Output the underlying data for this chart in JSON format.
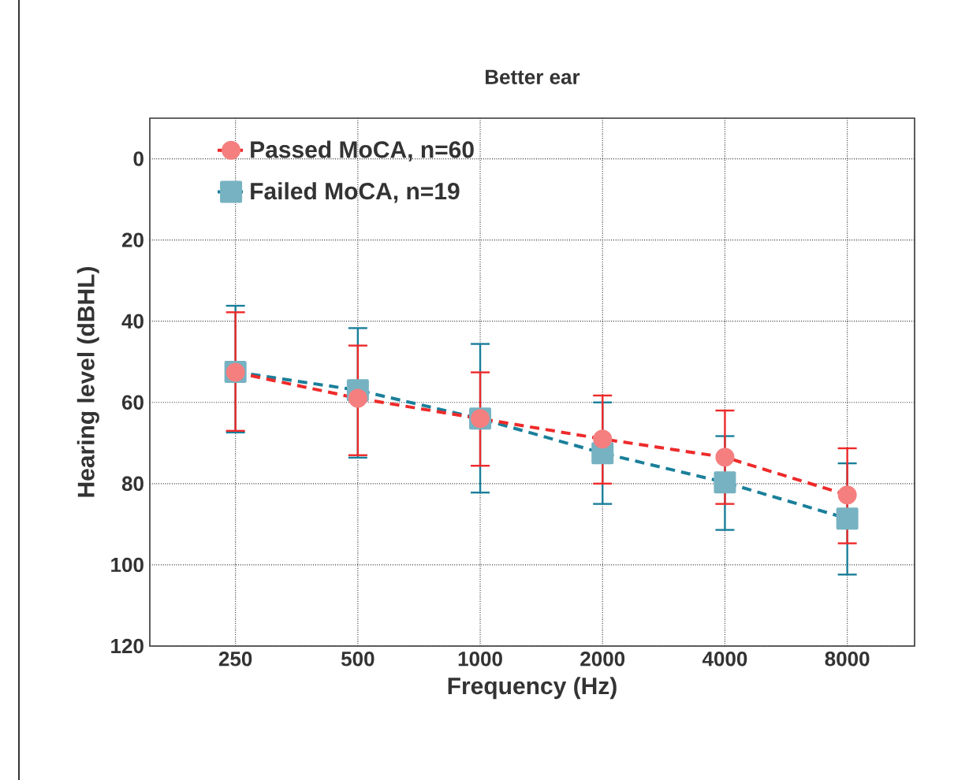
{
  "chart_data": {
    "type": "line",
    "title": "Better ear",
    "xlabel": "Frequency (Hz)",
    "ylabel": "Hearing level (dBHL)",
    "categories": [
      "250",
      "500",
      "1000",
      "2000",
      "4000",
      "8000"
    ],
    "ylim": [
      120,
      -10
    ],
    "yticks": [
      0,
      20,
      40,
      60,
      80,
      100,
      120
    ],
    "grid": true,
    "legend": "top left",
    "line_style": "dashed",
    "series": [
      {
        "name": "Passed MoCA, n=60",
        "color": "#ee2a2a",
        "marker": "circle",
        "values": [
          52.6,
          59,
          64,
          69,
          73.5,
          82.8
        ],
        "errors": [
          [
            37.8,
            67
          ],
          [
            46,
            73
          ],
          [
            52.6,
            75.6
          ],
          [
            58.3,
            80
          ],
          [
            62,
            85
          ],
          [
            71.3,
            94.7
          ]
        ]
      },
      {
        "name": "Failed MoCA, n=19",
        "color": "#1a7f9a",
        "marker": "square",
        "values": [
          52.5,
          57,
          64,
          72.5,
          79.7,
          88.6
        ],
        "errors": [
          [
            36.2,
            67.4
          ],
          [
            41.7,
            73.6
          ],
          [
            45.6,
            82.2
          ],
          [
            60,
            85
          ],
          [
            68.3,
            91.4
          ],
          [
            75,
            102.4
          ]
        ]
      }
    ]
  }
}
